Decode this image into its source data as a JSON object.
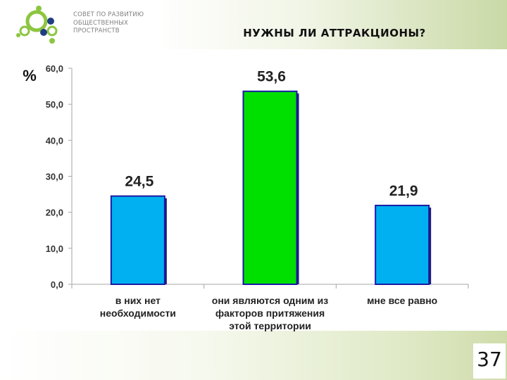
{
  "logo": {
    "lines": [
      "СОВЕТ ПО РАЗВИТИЮ",
      "ОБЩЕСТВЕННЫХ",
      "ПРОСТРАНСТВ"
    ],
    "colors": {
      "green": "#8cc63f",
      "navy": "#1f3e80"
    }
  },
  "page": {
    "title": "НУЖНЫ ЛИ АТТРАКЦИОНЫ?",
    "number": "37"
  },
  "chart_data": {
    "type": "bar",
    "title": "",
    "ylabel": "%",
    "xlabel": "",
    "ylim": [
      0,
      60
    ],
    "yticks": [
      "0,0",
      "10,0",
      "20,0",
      "30,0",
      "40,0",
      "50,0",
      "60,0"
    ],
    "grid": false,
    "legend": "none",
    "categories": [
      [
        "в них нет",
        "необходимости"
      ],
      [
        "они являются одним из",
        "факторов притяжения",
        "этой территории"
      ],
      [
        "мне все равно"
      ]
    ],
    "values": [
      24.5,
      53.6,
      21.9
    ],
    "value_labels": [
      "24,5",
      "53,6",
      "21,9"
    ],
    "colors": [
      "#00b0f0",
      "#00e000",
      "#00b0f0"
    ],
    "border_color": "#1a1aa6"
  }
}
